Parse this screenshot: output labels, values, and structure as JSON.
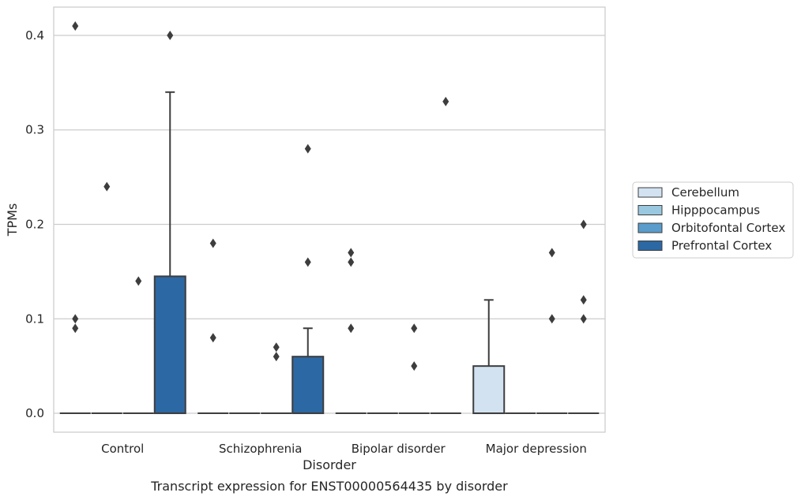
{
  "chart_data": {
    "type": "box",
    "title": "",
    "caption": "Transcript expression for ENST00000564435 by disorder",
    "xlabel": "Disorder",
    "ylabel": "TPMs",
    "ylim": [
      -0.02,
      0.43
    ],
    "yticks": [
      0.0,
      0.1,
      0.2,
      0.3,
      0.4
    ],
    "ytick_labels": [
      "0.0",
      "0.1",
      "0.2",
      "0.3",
      "0.4"
    ],
    "grid": "horizontal",
    "legend_position": "right",
    "categories": [
      "Control",
      "Schizophrenia",
      "Bipolar disorder",
      "Major depression"
    ],
    "series": [
      {
        "name": "Cerebellum",
        "color": "#d2e2f1",
        "boxes": [
          {
            "q1": 0,
            "median": 0,
            "q3": 0,
            "whislo": 0,
            "whishi": 0,
            "fliers": [
              0.41,
              0.1,
              0.09
            ]
          },
          {
            "q1": 0,
            "median": 0,
            "q3": 0,
            "whislo": 0,
            "whishi": 0,
            "fliers": [
              0.18,
              0.08
            ]
          },
          {
            "q1": 0,
            "median": 0,
            "q3": 0,
            "whislo": 0,
            "whishi": 0,
            "fliers": [
              0.17,
              0.16,
              0.09
            ]
          },
          {
            "q1": 0,
            "median": 0,
            "q3": 0.05,
            "whislo": 0,
            "whishi": 0.12,
            "fliers": []
          }
        ]
      },
      {
        "name": "Hipppocampus",
        "color": "#9ac8e0",
        "boxes": [
          {
            "q1": 0,
            "median": 0,
            "q3": 0,
            "whislo": 0,
            "whishi": 0,
            "fliers": [
              0.24
            ]
          },
          {
            "q1": 0,
            "median": 0,
            "q3": 0,
            "whislo": 0,
            "whishi": 0,
            "fliers": []
          },
          {
            "q1": 0,
            "median": 0,
            "q3": 0,
            "whislo": 0,
            "whishi": 0,
            "fliers": []
          },
          {
            "q1": 0,
            "median": 0,
            "q3": 0,
            "whislo": 0,
            "whishi": 0,
            "fliers": []
          }
        ]
      },
      {
        "name": "Orbitofontal Cortex",
        "color": "#5a9ccc",
        "boxes": [
          {
            "q1": 0,
            "median": 0,
            "q3": 0,
            "whislo": 0,
            "whishi": 0,
            "fliers": [
              0.14
            ]
          },
          {
            "q1": 0,
            "median": 0,
            "q3": 0,
            "whislo": 0,
            "whishi": 0,
            "fliers": [
              0.07,
              0.06
            ]
          },
          {
            "q1": 0,
            "median": 0,
            "q3": 0,
            "whislo": 0,
            "whishi": 0,
            "fliers": [
              0.09,
              0.05
            ]
          },
          {
            "q1": 0,
            "median": 0,
            "q3": 0,
            "whislo": 0,
            "whishi": 0,
            "fliers": [
              0.17,
              0.1
            ]
          }
        ]
      },
      {
        "name": "Prefrontal Cortex",
        "color": "#2c68a4",
        "boxes": [
          {
            "q1": 0,
            "median": 0,
            "q3": 0.145,
            "whislo": 0,
            "whishi": 0.34,
            "fliers": [
              0.4
            ]
          },
          {
            "q1": 0,
            "median": 0,
            "q3": 0.06,
            "whislo": 0,
            "whishi": 0.09,
            "fliers": [
              0.28,
              0.16
            ]
          },
          {
            "q1": 0,
            "median": 0,
            "q3": 0,
            "whislo": 0,
            "whishi": 0,
            "fliers": [
              0.33
            ]
          },
          {
            "q1": 0,
            "median": 0,
            "q3": 0,
            "whislo": 0,
            "whishi": 0,
            "fliers": [
              0.2,
              0.12,
              0.1
            ]
          }
        ]
      }
    ]
  }
}
